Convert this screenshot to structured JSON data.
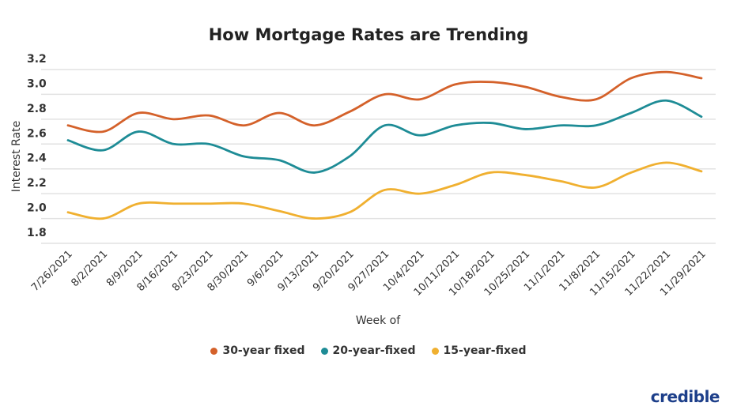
{
  "chart_data": {
    "type": "line",
    "title": "How Mortgage Rates are Trending",
    "xlabel": "Week of",
    "ylabel": "Interest Rate",
    "ylim": [
      1.8,
      3.2
    ],
    "yticks": [
      "1.8",
      "2.0",
      "2.2",
      "2.4",
      "2.6",
      "2.8",
      "3.0",
      "3.2"
    ],
    "grid": true,
    "legend_position": "bottom",
    "categories": [
      "7/26/2021",
      "8/2/2021",
      "8/9/2021",
      "8/16/2021",
      "8/23/2021",
      "8/30/2021",
      "9/6/2021",
      "9/13/2021",
      "9/20/2021",
      "9/27/2021",
      "10/4/2021",
      "10/11/2021",
      "10/18/2021",
      "10/25/2021",
      "11/1/2021",
      "11/8/2021",
      "11/15/2021",
      "11/22/2021",
      "11/29/2021"
    ],
    "series": [
      {
        "name": "30-year fixed",
        "color": "#d4612a",
        "values": [
          2.75,
          2.7,
          2.85,
          2.8,
          2.83,
          2.75,
          2.85,
          2.75,
          2.86,
          3.0,
          2.96,
          3.08,
          3.1,
          3.06,
          2.98,
          2.96,
          3.13,
          3.18,
          3.13
        ]
      },
      {
        "name": "20-year-fixed",
        "color": "#1e8c96",
        "values": [
          2.63,
          2.55,
          2.7,
          2.6,
          2.6,
          2.5,
          2.47,
          2.37,
          2.5,
          2.75,
          2.67,
          2.75,
          2.77,
          2.72,
          2.75,
          2.75,
          2.85,
          2.95,
          2.82
        ]
      },
      {
        "name": "15-year-fixed",
        "color": "#f0b030",
        "values": [
          2.05,
          2.0,
          2.12,
          2.12,
          2.12,
          2.12,
          2.06,
          2.0,
          2.05,
          2.23,
          2.2,
          2.27,
          2.37,
          2.35,
          2.3,
          2.25,
          2.37,
          2.45,
          2.38
        ]
      }
    ]
  },
  "logo": "credible"
}
